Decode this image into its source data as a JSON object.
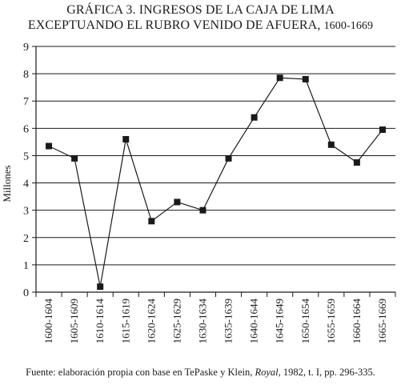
{
  "title": {
    "line1": "GRÁFICA 3. INGRESOS DE LA CAJA DE LIMA",
    "line2": "EXCEPTUANDO EL RUBRO VENIDO DE AFUERA,",
    "years": "1600-1669"
  },
  "source": {
    "prefix": "Fuente: elaboración propia con base en TePaske y Klein, ",
    "italic": "Royal",
    "suffix": ", 1982, t. I, pp. 296-335."
  },
  "chart_data": {
    "type": "line",
    "ylabel": "Millones",
    "xlabel": "",
    "ylim": [
      0,
      9
    ],
    "yticks": [
      "0",
      "1",
      "2",
      "3",
      "4",
      "5",
      "6",
      "7",
      "8",
      "9"
    ],
    "grid": "horizontal",
    "marker": "square",
    "line_color": "#1a1a1a",
    "categories": [
      "1600-1604",
      "1605-1609",
      "1610-1614",
      "1615-1619",
      "1620-1624",
      "1625-1629",
      "1630-1634",
      "1635-1639",
      "1640-1644",
      "1645-1649",
      "1650-1654",
      "1655-1659",
      "1660-1664",
      "1665-1669"
    ],
    "values": [
      5.35,
      4.9,
      0.2,
      5.6,
      2.6,
      3.3,
      3.0,
      4.9,
      6.4,
      7.85,
      7.8,
      5.4,
      4.75,
      5.95
    ]
  }
}
